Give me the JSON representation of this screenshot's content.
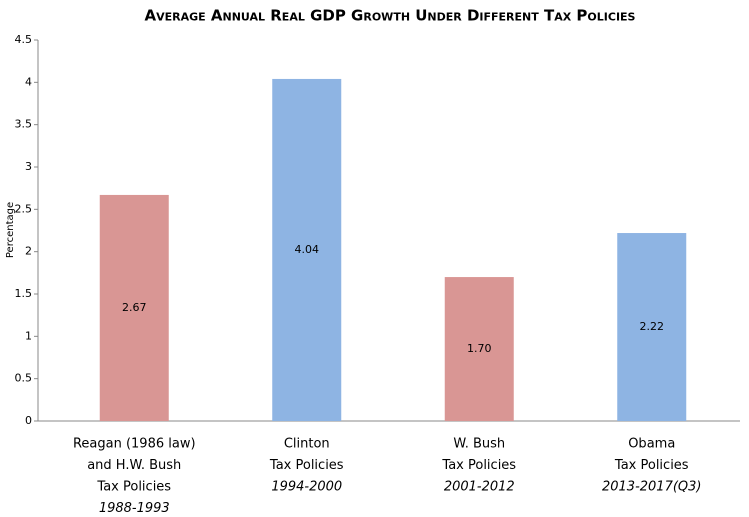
{
  "chart_data": {
    "type": "bar",
    "title": "Average Annual Real GDP Growth Under Different Tax Policies",
    "ylabel": "Percentage",
    "categories": [
      [
        "Reagan (1986 law)",
        "and H.W. Bush",
        "Tax Policies"
      ],
      [
        "Clinton",
        "Tax Policies"
      ],
      [
        "W. Bush",
        "Tax Policies"
      ],
      [
        "Obama",
        "Tax Policies"
      ]
    ],
    "periods": [
      "1988-1993",
      "1994-2000",
      "2001-2012",
      "2013-2017(Q3)"
    ],
    "values": [
      2.67,
      4.04,
      1.7,
      2.22
    ],
    "value_labels": [
      "2.67",
      "4.04",
      "1.70",
      "2.22"
    ],
    "colors": [
      "#d99694",
      "#8eb4e3",
      "#d99694",
      "#8eb4e3"
    ],
    "ylim": [
      0,
      4.5
    ],
    "yticks": [
      0,
      0.5,
      1,
      1.5,
      2,
      2.5,
      3,
      3.5,
      4,
      4.5
    ],
    "grid": false
  }
}
